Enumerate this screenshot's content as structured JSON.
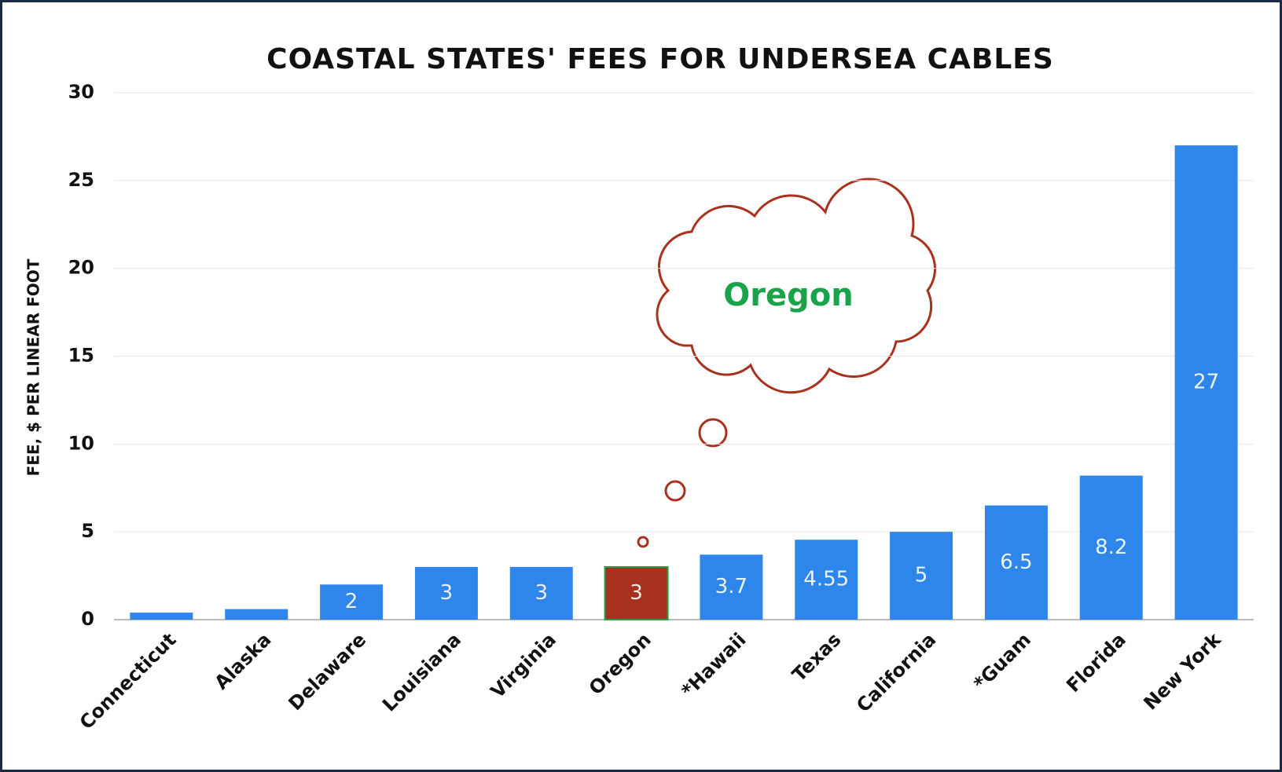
{
  "chart_data": {
    "type": "bar",
    "title": "COASTAL STATES' FEES FOR UNDERSEA CABLES",
    "y_label": "FEE, $ PER LINEAR FOOT",
    "categories": [
      "Connecticut",
      "Alaska",
      "Delaware",
      "Louisiana",
      "Virginia",
      "Oregon",
      "*Hawaii",
      "Texas",
      "California",
      "*Guam",
      "Florida",
      "New York"
    ],
    "values": [
      0.4,
      0.6,
      2,
      3,
      3,
      3,
      3.7,
      4.55,
      5,
      6.5,
      8.2,
      27
    ],
    "color": "#2e86ea",
    "highlight": "Oregon",
    "highlight_color": "#a8321d",
    "highlight_border": "#1aa34a",
    "annotation": "Oregon",
    "annotation_color": "#1aa34a",
    "ylim": [
      0,
      30
    ],
    "yticks": [
      0,
      5,
      10,
      15,
      20,
      25,
      30
    ],
    "grid": true
  }
}
